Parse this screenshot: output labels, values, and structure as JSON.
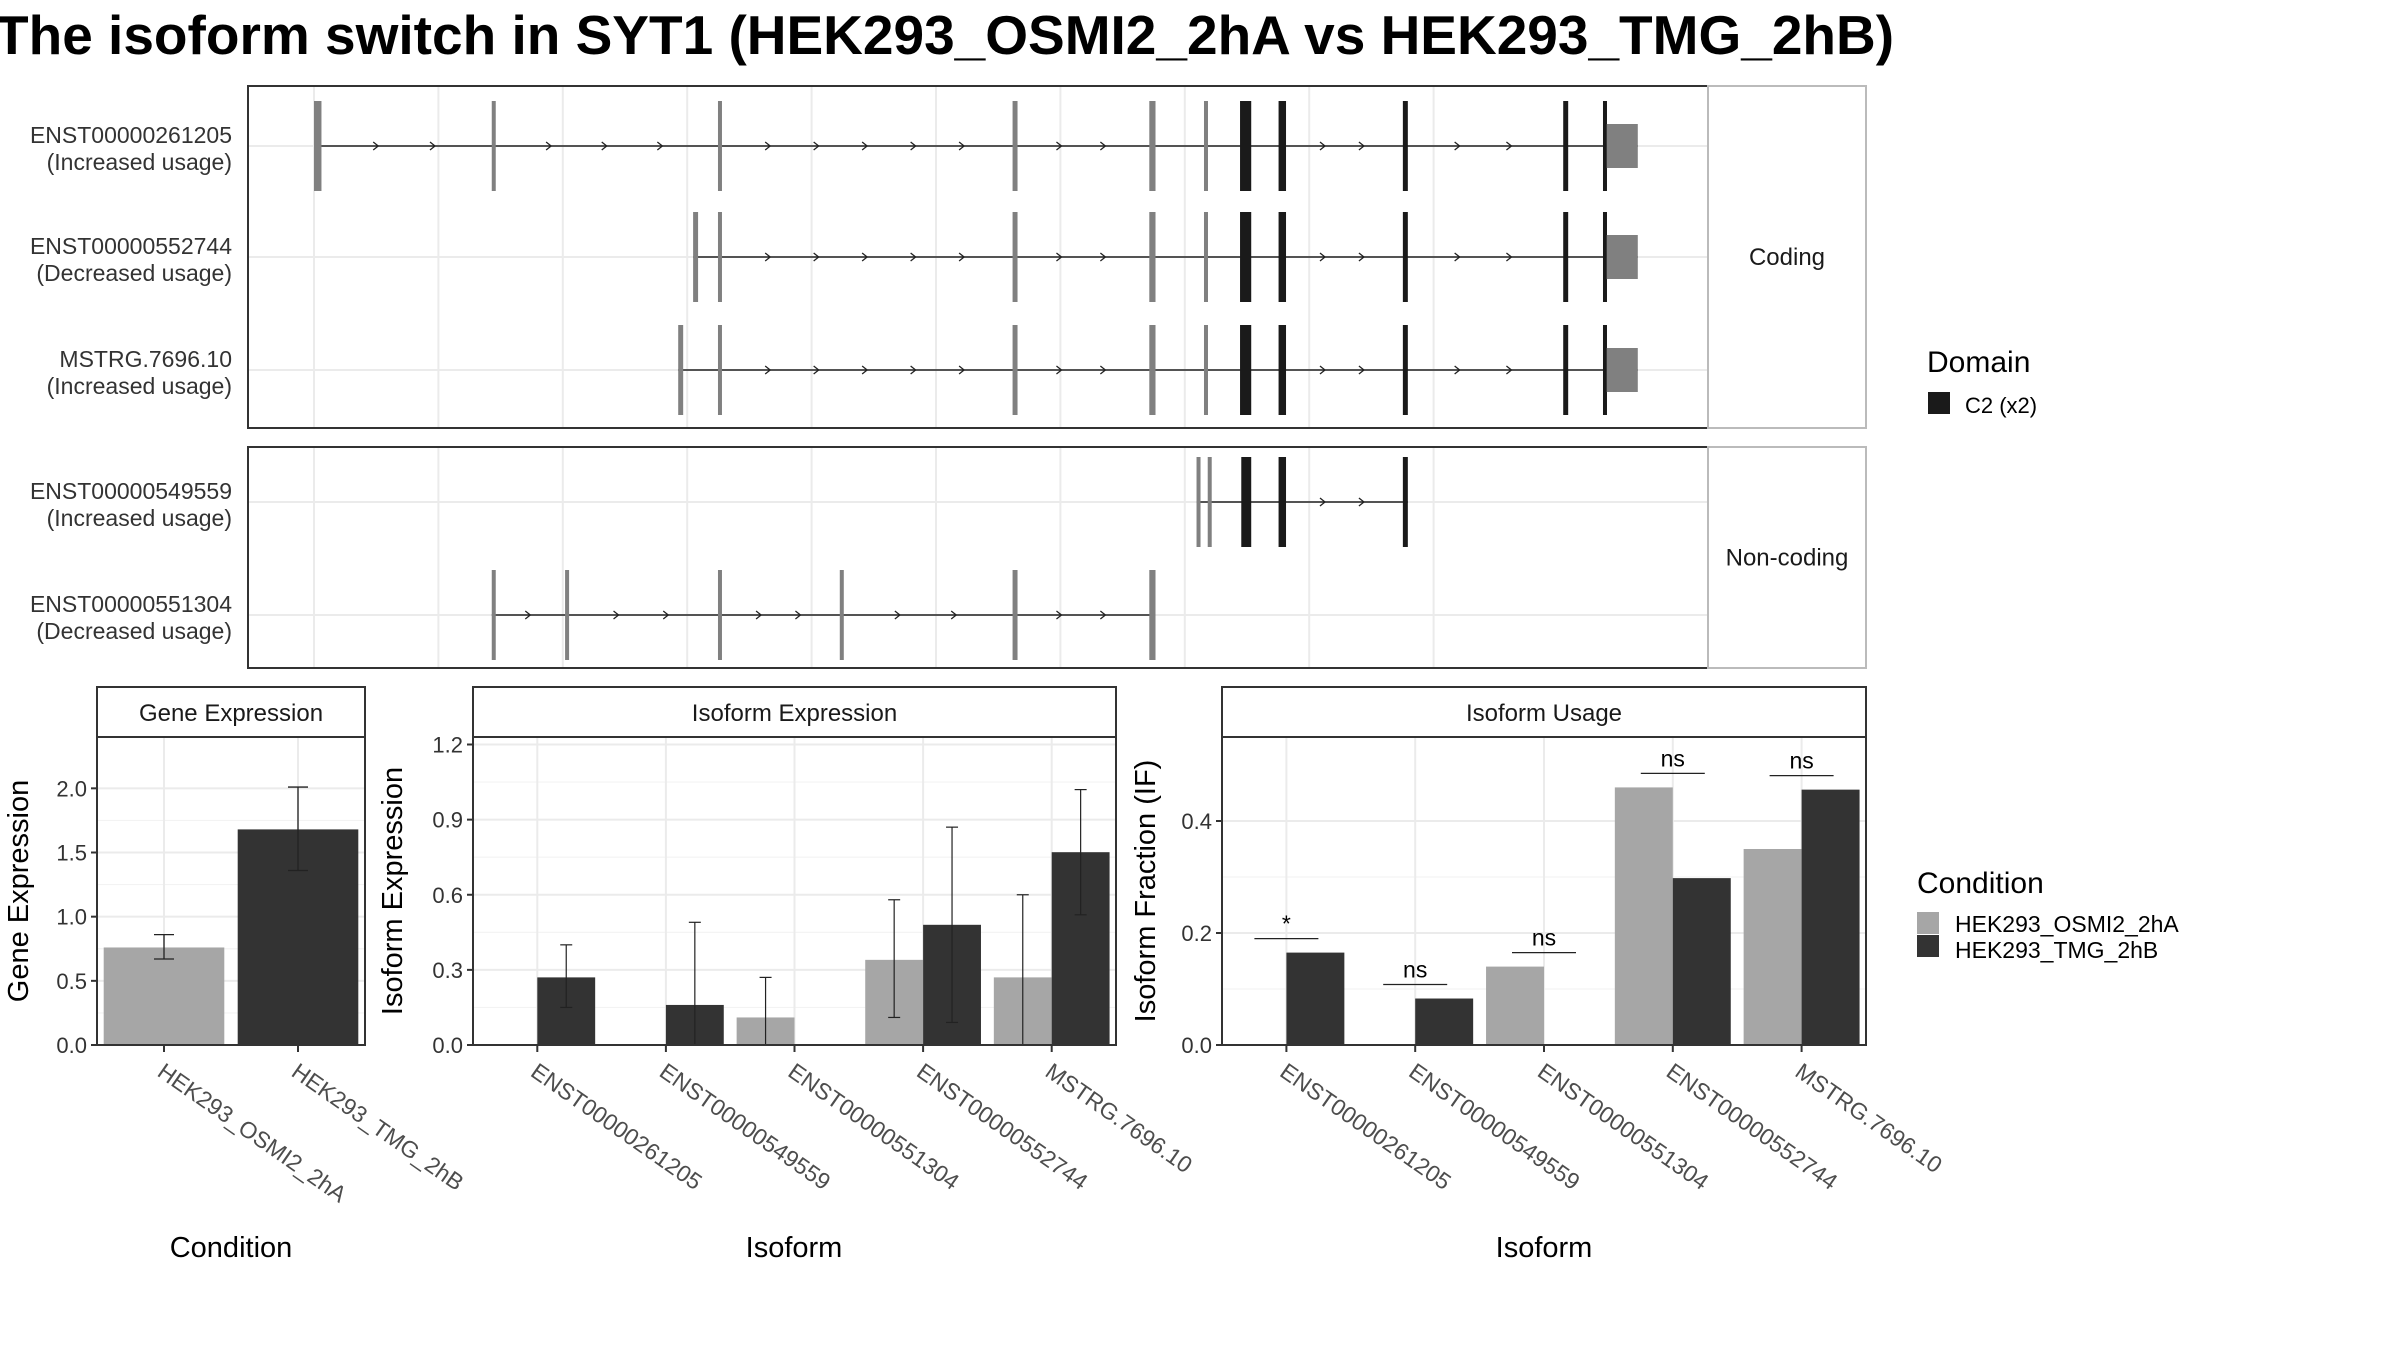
{
  "title": "The isoform switch in SYT1 (HEK293_OSMI2_2hA vs HEK293_TMG_2hB)",
  "colors": {
    "cond_a": "#a6a6a6",
    "cond_b": "#333333",
    "exon_grey": "#808080",
    "domain": "#1a1a1a",
    "grid": "#ebebeb",
    "panel_border": "#333333",
    "strip_bg": "#ffffff"
  },
  "structure": {
    "x_range": [
      0,
      100
    ],
    "panels": [
      {
        "label": "Coding",
        "transcripts": [
          {
            "id": "ENST00000261205",
            "usage": "(Increased usage)",
            "exons": [
              [
                0,
                0.6,
                "e"
              ],
              [
                14.3,
                14.6,
                "e"
              ],
              [
                32.5,
                32.8,
                "e"
              ],
              [
                56.2,
                56.6,
                "e"
              ],
              [
                67.2,
                67.7,
                "e"
              ],
              [
                71.6,
                71.9,
                "e"
              ],
              [
                74.5,
                75.4,
                "d"
              ],
              [
                77.6,
                78.2,
                "d"
              ],
              [
                87.6,
                88.0,
                "d"
              ],
              [
                100.5,
                100.9,
                "d"
              ],
              [
                103.7,
                104.0,
                "d"
              ],
              [
                104.0,
                106.5,
                "u"
              ]
            ]
          },
          {
            "id": "ENST00000552744",
            "usage": "(Decreased usage)",
            "exons": [
              [
                30.5,
                30.9,
                "e"
              ],
              [
                32.5,
                32.8,
                "e"
              ],
              [
                56.2,
                56.6,
                "e"
              ],
              [
                67.2,
                67.7,
                "e"
              ],
              [
                71.6,
                71.9,
                "e"
              ],
              [
                74.5,
                75.4,
                "d"
              ],
              [
                77.6,
                78.2,
                "d"
              ],
              [
                87.6,
                88.0,
                "d"
              ],
              [
                100.5,
                100.9,
                "d"
              ],
              [
                103.7,
                104.0,
                "d"
              ],
              [
                104.0,
                106.5,
                "u"
              ]
            ]
          },
          {
            "id": "MSTRG.7696.10",
            "usage": "(Increased usage)",
            "exons": [
              [
                29.3,
                29.7,
                "e"
              ],
              [
                32.5,
                32.8,
                "e"
              ],
              [
                56.2,
                56.6,
                "e"
              ],
              [
                67.2,
                67.7,
                "e"
              ],
              [
                71.6,
                71.9,
                "e"
              ],
              [
                74.5,
                75.4,
                "d"
              ],
              [
                77.6,
                78.2,
                "d"
              ],
              [
                87.6,
                88.0,
                "d"
              ],
              [
                100.5,
                100.9,
                "d"
              ],
              [
                103.7,
                104.0,
                "d"
              ],
              [
                104.0,
                106.5,
                "u"
              ]
            ]
          }
        ]
      },
      {
        "label": "Non-coding",
        "transcripts": [
          {
            "id": "ENST00000549559",
            "usage": "(Increased usage)",
            "exons": [
              [
                71.0,
                71.3,
                "e"
              ],
              [
                71.9,
                72.2,
                "e"
              ],
              [
                74.6,
                75.4,
                "d"
              ],
              [
                77.6,
                78.2,
                "d"
              ],
              [
                87.6,
                88.0,
                "d"
              ]
            ]
          },
          {
            "id": "ENST00000551304",
            "usage": "(Decreased usage)",
            "exons": [
              [
                14.3,
                14.6,
                "e"
              ],
              [
                20.2,
                20.5,
                "e"
              ],
              [
                32.5,
                32.8,
                "e"
              ],
              [
                42.3,
                42.6,
                "e"
              ],
              [
                56.2,
                56.6,
                "e"
              ],
              [
                67.2,
                67.7,
                "e"
              ]
            ]
          }
        ]
      }
    ]
  },
  "legend_domain": {
    "title": "Domain",
    "items": [
      {
        "label": "C2 (x2)"
      }
    ]
  },
  "legend_condition": {
    "title": "Condition",
    "items": [
      {
        "label": "HEK293_OSMI2_2hA"
      },
      {
        "label": "HEK293_TMG_2hB"
      }
    ]
  },
  "chart_data": [
    {
      "type": "bar",
      "strip": "Gene Expression",
      "xlabel": "Condition",
      "ylabel": "Gene Expression",
      "ylim": [
        0,
        2.4
      ],
      "yticks": [
        "0.0",
        "0.5",
        "1.0",
        "1.5",
        "2.0"
      ],
      "categories": [
        "HEK293_OSMI2_2hA",
        "HEK293_TMG_2hB"
      ],
      "values": [
        0.76,
        1.68
      ],
      "err_low": [
        0.67,
        1.36
      ],
      "err_high": [
        0.86,
        2.01
      ]
    },
    {
      "type": "bar",
      "strip": "Isoform Expression",
      "xlabel": "Isoform",
      "ylabel": "Isoform Expression",
      "ylim": [
        0,
        1.23
      ],
      "yticks": [
        "0.0",
        "0.3",
        "0.6",
        "0.9",
        "1.2"
      ],
      "categories": [
        "ENST00000261205",
        "ENST00000549559",
        "ENST00000551304",
        "ENST00000552744",
        "MSTRG.7696.10"
      ],
      "series": [
        {
          "name": "HEK293_OSMI2_2hA",
          "values": [
            0,
            0,
            0.11,
            0.34,
            0.27
          ],
          "err_low": [
            0,
            0,
            0,
            0.11,
            0
          ],
          "err_high": [
            0,
            0,
            0.27,
            0.58,
            0.6
          ]
        },
        {
          "name": "HEK293_TMG_2hB",
          "values": [
            0.27,
            0.16,
            0,
            0.48,
            0.77
          ],
          "err_low": [
            0.15,
            0,
            0,
            0.09,
            0.52
          ],
          "err_high": [
            0.4,
            0.49,
            0,
            0.87,
            1.02
          ]
        }
      ]
    },
    {
      "type": "bar",
      "strip": "Isoform Usage",
      "xlabel": "Isoform",
      "ylabel": "Isoform Fraction (IF)",
      "ylim": [
        0,
        0.55
      ],
      "yticks": [
        "0.0",
        "0.2",
        "0.4"
      ],
      "categories": [
        "ENST00000261205",
        "ENST00000549559",
        "ENST00000551304",
        "ENST00000552744",
        "MSTRG.7696.10"
      ],
      "series": [
        {
          "name": "HEK293_OSMI2_2hA",
          "values": [
            0,
            0,
            0.14,
            0.46,
            0.35
          ]
        },
        {
          "name": "HEK293_TMG_2hB",
          "values": [
            0.165,
            0.083,
            0,
            0.298,
            0.456
          ]
        }
      ],
      "annotations": [
        {
          "category": "ENST00000261205",
          "label": "*",
          "y": 0.19
        },
        {
          "category": "ENST00000549559",
          "label": "ns",
          "y": 0.108
        },
        {
          "category": "ENST00000551304",
          "label": "ns",
          "y": 0.165
        },
        {
          "category": "ENST00000552744",
          "label": "ns",
          "y": 0.485
        },
        {
          "category": "MSTRG.7696.10",
          "label": "ns",
          "y": 0.481
        }
      ]
    }
  ]
}
